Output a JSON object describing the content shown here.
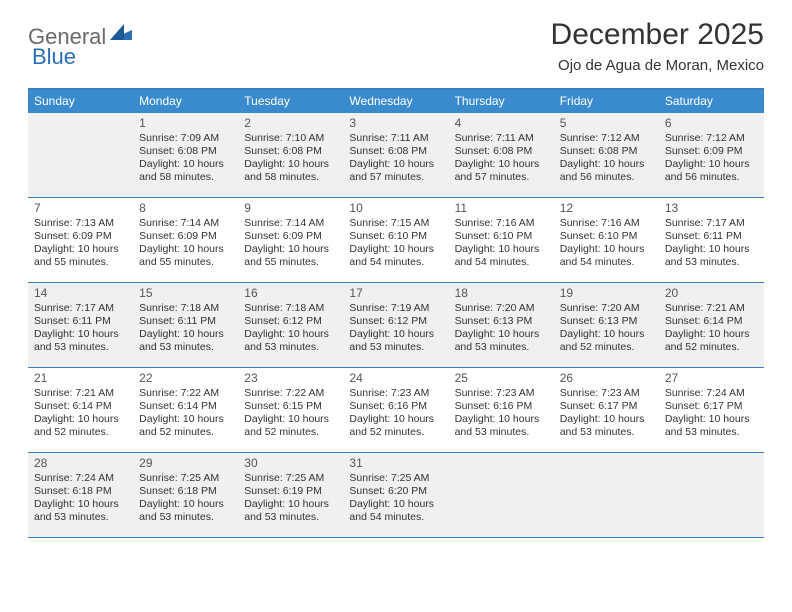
{
  "brand": {
    "part1": "General",
    "part2": "Blue"
  },
  "title": "December 2025",
  "location": "Ojo de Agua de Moran, Mexico",
  "colors": {
    "header_bg": "#3a8bce",
    "rule": "#3a7fc4",
    "shaded": "#f0f0f0",
    "text": "#333333",
    "logo_grey": "#6a6a6a",
    "logo_blue": "#2a6fb5"
  },
  "dow": [
    "Sunday",
    "Monday",
    "Tuesday",
    "Wednesday",
    "Thursday",
    "Friday",
    "Saturday"
  ],
  "weeks": [
    [
      {
        "n": "",
        "sr": "",
        "ss": "",
        "dl": ""
      },
      {
        "n": "1",
        "sr": "Sunrise: 7:09 AM",
        "ss": "Sunset: 6:08 PM",
        "dl": "Daylight: 10 hours and 58 minutes."
      },
      {
        "n": "2",
        "sr": "Sunrise: 7:10 AM",
        "ss": "Sunset: 6:08 PM",
        "dl": "Daylight: 10 hours and 58 minutes."
      },
      {
        "n": "3",
        "sr": "Sunrise: 7:11 AM",
        "ss": "Sunset: 6:08 PM",
        "dl": "Daylight: 10 hours and 57 minutes."
      },
      {
        "n": "4",
        "sr": "Sunrise: 7:11 AM",
        "ss": "Sunset: 6:08 PM",
        "dl": "Daylight: 10 hours and 57 minutes."
      },
      {
        "n": "5",
        "sr": "Sunrise: 7:12 AM",
        "ss": "Sunset: 6:08 PM",
        "dl": "Daylight: 10 hours and 56 minutes."
      },
      {
        "n": "6",
        "sr": "Sunrise: 7:12 AM",
        "ss": "Sunset: 6:09 PM",
        "dl": "Daylight: 10 hours and 56 minutes."
      }
    ],
    [
      {
        "n": "7",
        "sr": "Sunrise: 7:13 AM",
        "ss": "Sunset: 6:09 PM",
        "dl": "Daylight: 10 hours and 55 minutes."
      },
      {
        "n": "8",
        "sr": "Sunrise: 7:14 AM",
        "ss": "Sunset: 6:09 PM",
        "dl": "Daylight: 10 hours and 55 minutes."
      },
      {
        "n": "9",
        "sr": "Sunrise: 7:14 AM",
        "ss": "Sunset: 6:09 PM",
        "dl": "Daylight: 10 hours and 55 minutes."
      },
      {
        "n": "10",
        "sr": "Sunrise: 7:15 AM",
        "ss": "Sunset: 6:10 PM",
        "dl": "Daylight: 10 hours and 54 minutes."
      },
      {
        "n": "11",
        "sr": "Sunrise: 7:16 AM",
        "ss": "Sunset: 6:10 PM",
        "dl": "Daylight: 10 hours and 54 minutes."
      },
      {
        "n": "12",
        "sr": "Sunrise: 7:16 AM",
        "ss": "Sunset: 6:10 PM",
        "dl": "Daylight: 10 hours and 54 minutes."
      },
      {
        "n": "13",
        "sr": "Sunrise: 7:17 AM",
        "ss": "Sunset: 6:11 PM",
        "dl": "Daylight: 10 hours and 53 minutes."
      }
    ],
    [
      {
        "n": "14",
        "sr": "Sunrise: 7:17 AM",
        "ss": "Sunset: 6:11 PM",
        "dl": "Daylight: 10 hours and 53 minutes."
      },
      {
        "n": "15",
        "sr": "Sunrise: 7:18 AM",
        "ss": "Sunset: 6:11 PM",
        "dl": "Daylight: 10 hours and 53 minutes."
      },
      {
        "n": "16",
        "sr": "Sunrise: 7:18 AM",
        "ss": "Sunset: 6:12 PM",
        "dl": "Daylight: 10 hours and 53 minutes."
      },
      {
        "n": "17",
        "sr": "Sunrise: 7:19 AM",
        "ss": "Sunset: 6:12 PM",
        "dl": "Daylight: 10 hours and 53 minutes."
      },
      {
        "n": "18",
        "sr": "Sunrise: 7:20 AM",
        "ss": "Sunset: 6:13 PM",
        "dl": "Daylight: 10 hours and 53 minutes."
      },
      {
        "n": "19",
        "sr": "Sunrise: 7:20 AM",
        "ss": "Sunset: 6:13 PM",
        "dl": "Daylight: 10 hours and 52 minutes."
      },
      {
        "n": "20",
        "sr": "Sunrise: 7:21 AM",
        "ss": "Sunset: 6:14 PM",
        "dl": "Daylight: 10 hours and 52 minutes."
      }
    ],
    [
      {
        "n": "21",
        "sr": "Sunrise: 7:21 AM",
        "ss": "Sunset: 6:14 PM",
        "dl": "Daylight: 10 hours and 52 minutes."
      },
      {
        "n": "22",
        "sr": "Sunrise: 7:22 AM",
        "ss": "Sunset: 6:14 PM",
        "dl": "Daylight: 10 hours and 52 minutes."
      },
      {
        "n": "23",
        "sr": "Sunrise: 7:22 AM",
        "ss": "Sunset: 6:15 PM",
        "dl": "Daylight: 10 hours and 52 minutes."
      },
      {
        "n": "24",
        "sr": "Sunrise: 7:23 AM",
        "ss": "Sunset: 6:16 PM",
        "dl": "Daylight: 10 hours and 52 minutes."
      },
      {
        "n": "25",
        "sr": "Sunrise: 7:23 AM",
        "ss": "Sunset: 6:16 PM",
        "dl": "Daylight: 10 hours and 53 minutes."
      },
      {
        "n": "26",
        "sr": "Sunrise: 7:23 AM",
        "ss": "Sunset: 6:17 PM",
        "dl": "Daylight: 10 hours and 53 minutes."
      },
      {
        "n": "27",
        "sr": "Sunrise: 7:24 AM",
        "ss": "Sunset: 6:17 PM",
        "dl": "Daylight: 10 hours and 53 minutes."
      }
    ],
    [
      {
        "n": "28",
        "sr": "Sunrise: 7:24 AM",
        "ss": "Sunset: 6:18 PM",
        "dl": "Daylight: 10 hours and 53 minutes."
      },
      {
        "n": "29",
        "sr": "Sunrise: 7:25 AM",
        "ss": "Sunset: 6:18 PM",
        "dl": "Daylight: 10 hours and 53 minutes."
      },
      {
        "n": "30",
        "sr": "Sunrise: 7:25 AM",
        "ss": "Sunset: 6:19 PM",
        "dl": "Daylight: 10 hours and 53 minutes."
      },
      {
        "n": "31",
        "sr": "Sunrise: 7:25 AM",
        "ss": "Sunset: 6:20 PM",
        "dl": "Daylight: 10 hours and 54 minutes."
      },
      {
        "n": "",
        "sr": "",
        "ss": "",
        "dl": ""
      },
      {
        "n": "",
        "sr": "",
        "ss": "",
        "dl": ""
      },
      {
        "n": "",
        "sr": "",
        "ss": "",
        "dl": ""
      }
    ]
  ]
}
